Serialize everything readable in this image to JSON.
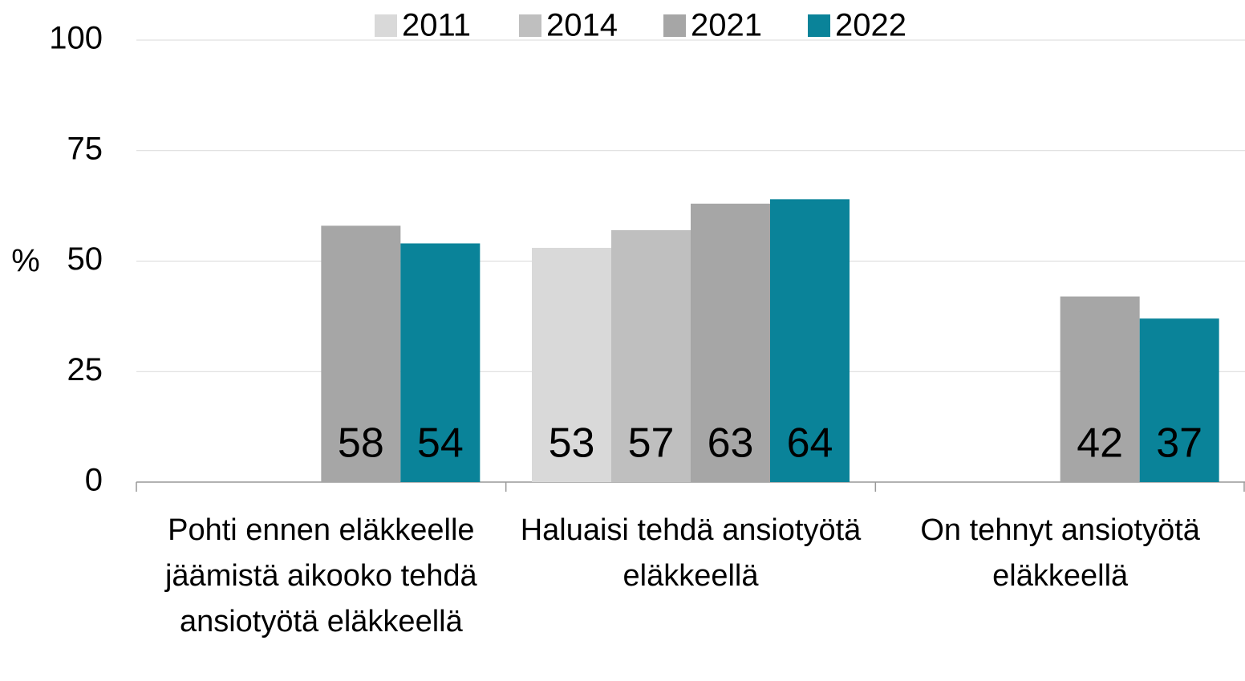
{
  "chart_data": {
    "type": "bar",
    "categories": [
      "Pohti ennen eläkkeelle jäämistä aikooko tehdä ansiotyötä eläkkeellä",
      "Haluaisi tehdä ansiotyötä eläkkeellä",
      "On tehnyt ansiotyötä eläkkeellä"
    ],
    "series": [
      {
        "name": "2011",
        "color": "#d9d9d9",
        "values": [
          null,
          53,
          null
        ]
      },
      {
        "name": "2014",
        "color": "#bfbfbf",
        "values": [
          null,
          57,
          null
        ]
      },
      {
        "name": "2021",
        "color": "#a6a6a6",
        "values": [
          58,
          63,
          42
        ]
      },
      {
        "name": "2022",
        "color": "#0a8399",
        "values": [
          54,
          64,
          37
        ]
      }
    ],
    "y_label": "%",
    "ylim": [
      0,
      100
    ],
    "yticks": [
      0,
      25,
      50,
      75,
      100
    ],
    "grid": true,
    "legend": "top"
  }
}
